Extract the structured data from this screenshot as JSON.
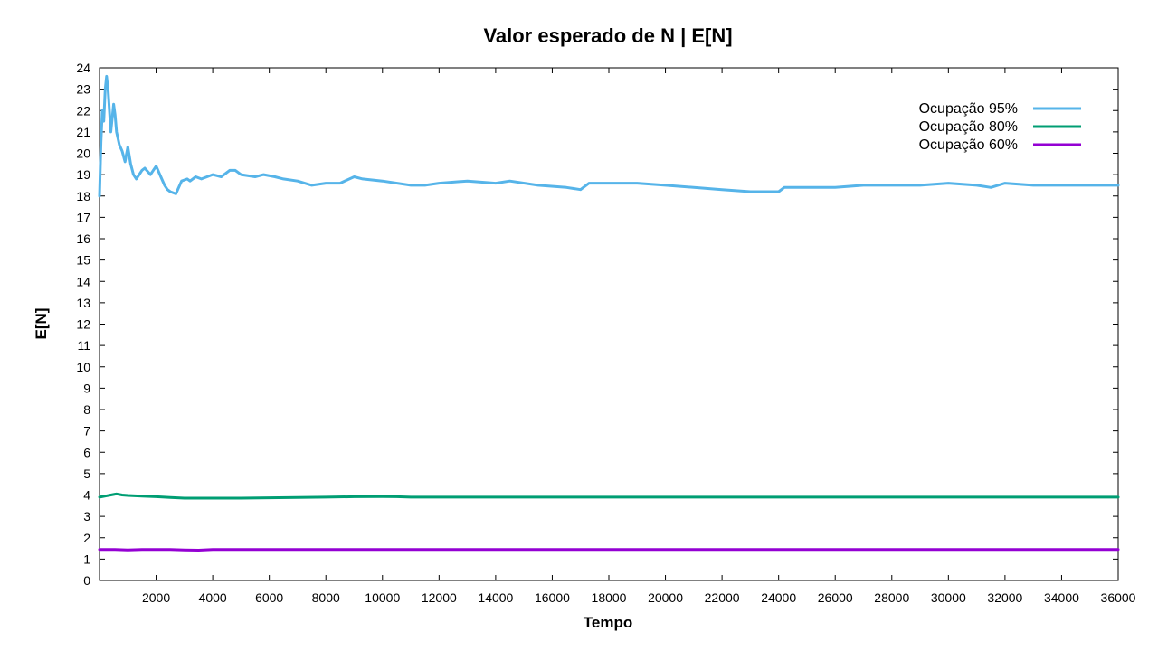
{
  "chart_data": {
    "type": "line",
    "title": "Valor esperado de N | E[N]",
    "xlabel": "Tempo",
    "ylabel": "E[N]",
    "xlim": [
      0,
      36000
    ],
    "ylim": [
      0,
      24
    ],
    "xticks": [
      2000,
      4000,
      6000,
      8000,
      10000,
      12000,
      14000,
      16000,
      18000,
      20000,
      22000,
      24000,
      26000,
      28000,
      30000,
      32000,
      34000,
      36000
    ],
    "yticks": [
      0,
      1,
      2,
      3,
      4,
      5,
      6,
      7,
      8,
      9,
      10,
      11,
      12,
      13,
      14,
      15,
      16,
      17,
      18,
      19,
      20,
      21,
      22,
      23,
      24
    ],
    "grid": false,
    "legend_position": "top-right",
    "series": [
      {
        "name": "Ocupação 95%",
        "color": "#56b4e9",
        "x": [
          0,
          50,
          100,
          150,
          200,
          250,
          300,
          400,
          500,
          550,
          600,
          700,
          800,
          900,
          1000,
          1100,
          1200,
          1300,
          1500,
          1600,
          1800,
          2000,
          2200,
          2300,
          2400,
          2500,
          2700,
          2900,
          3100,
          3200,
          3400,
          3600,
          3800,
          4000,
          4300,
          4600,
          4800,
          5000,
          5500,
          5800,
          6200,
          6500,
          7000,
          7500,
          8000,
          8500,
          9000,
          9300,
          10000,
          11000,
          11500,
          12000,
          13000,
          14000,
          14500,
          15500,
          16500,
          17000,
          17300,
          18000,
          19000,
          20000,
          21000,
          22000,
          23000,
          23500,
          24000,
          24200,
          25000,
          26000,
          27000,
          28000,
          29000,
          30000,
          31000,
          31500,
          32000,
          33000,
          34000,
          35000,
          36000
        ],
        "values": [
          18.0,
          20.5,
          22.0,
          21.5,
          23.0,
          23.6,
          23.0,
          21.0,
          22.3,
          21.8,
          21.0,
          20.4,
          20.1,
          19.6,
          20.3,
          19.5,
          19.0,
          18.8,
          19.2,
          19.3,
          19.0,
          19.4,
          18.8,
          18.5,
          18.3,
          18.2,
          18.1,
          18.7,
          18.8,
          18.7,
          18.9,
          18.8,
          18.9,
          19.0,
          18.9,
          19.2,
          19.2,
          19.0,
          18.9,
          19.0,
          18.9,
          18.8,
          18.7,
          18.5,
          18.6,
          18.6,
          18.9,
          18.8,
          18.7,
          18.5,
          18.5,
          18.6,
          18.7,
          18.6,
          18.7,
          18.5,
          18.4,
          18.3,
          18.6,
          18.6,
          18.6,
          18.5,
          18.4,
          18.3,
          18.2,
          18.2,
          18.2,
          18.4,
          18.4,
          18.4,
          18.5,
          18.5,
          18.5,
          18.6,
          18.5,
          18.4,
          18.6,
          18.5,
          18.5,
          18.5,
          18.5
        ]
      },
      {
        "name": "Ocupação 80%",
        "color": "#009e73",
        "x": [
          0,
          200,
          400,
          600,
          800,
          1000,
          1500,
          2000,
          2500,
          3000,
          4000,
          5000,
          6000,
          7000,
          8000,
          9000,
          10000,
          10500,
          11000,
          12000,
          14000,
          16000,
          18000,
          20000,
          24000,
          28000,
          32000,
          36000
        ],
        "values": [
          3.9,
          3.95,
          4.0,
          4.05,
          4.0,
          3.98,
          3.95,
          3.92,
          3.88,
          3.85,
          3.85,
          3.85,
          3.87,
          3.88,
          3.9,
          3.92,
          3.93,
          3.92,
          3.9,
          3.9,
          3.9,
          3.9,
          3.9,
          3.9,
          3.9,
          3.9,
          3.9,
          3.9
        ]
      },
      {
        "name": "Ocupação 60%",
        "color": "#9400d3",
        "x": [
          0,
          500,
          1000,
          1500,
          2000,
          2500,
          3000,
          3500,
          4000,
          6000,
          10000,
          14000,
          18000,
          22000,
          26000,
          30000,
          36000
        ],
        "values": [
          1.45,
          1.45,
          1.43,
          1.45,
          1.45,
          1.45,
          1.43,
          1.42,
          1.45,
          1.45,
          1.45,
          1.45,
          1.45,
          1.45,
          1.45,
          1.45,
          1.45
        ]
      }
    ]
  }
}
